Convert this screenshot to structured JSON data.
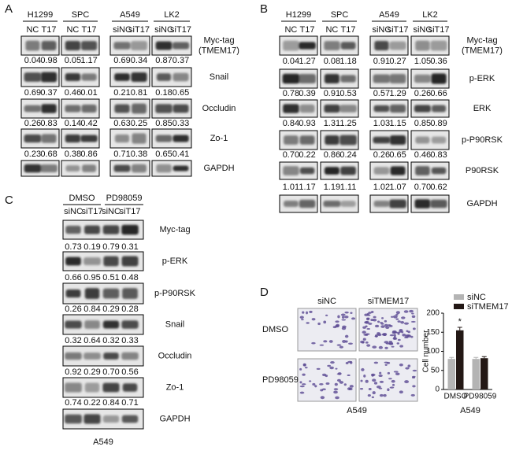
{
  "panel_a": {
    "label": "A",
    "groups": [
      "H1299",
      "SPC",
      "A549",
      "LK2"
    ],
    "lanes": [
      "NC",
      "T17",
      "NC",
      "T17",
      "siNC",
      "siT17",
      "siNC",
      "siT17"
    ],
    "rows": [
      {
        "name": [
          "Myc-tag",
          "(TMEM17)"
        ],
        "quant": [
          "0.04",
          "0.98",
          "0.05",
          "1.17",
          "0.69",
          "0.34",
          "0.87",
          "0.37"
        ]
      },
      {
        "name": [
          "Snail"
        ],
        "quant": [
          "0.69",
          "0.37",
          "0.46",
          "0.01",
          "0.21",
          "0.81",
          "0.18",
          "0.65"
        ]
      },
      {
        "name": [
          "Occludin"
        ],
        "quant": [
          "0.26",
          "0.83",
          "0.14",
          "0.42",
          "0.63",
          "0.25",
          "0.85",
          "0.33"
        ]
      },
      {
        "name": [
          "Zo-1"
        ],
        "quant": [
          "0.23",
          "0.68",
          "0.38",
          "0.86",
          "0.71",
          "0.38",
          "0.65",
          "0.41"
        ]
      },
      {
        "name": [
          "GAPDH"
        ]
      }
    ]
  },
  "panel_b": {
    "label": "B",
    "groups": [
      "H1299",
      "SPC",
      "A549",
      "LK2"
    ],
    "lanes": [
      "NC",
      "T17",
      "NC",
      "T17",
      "siNC",
      "siT17",
      "siNC",
      "siT17"
    ],
    "rows": [
      {
        "name": [
          "Myc-tag",
          "(TMEM17)"
        ],
        "quant": [
          "0.04",
          "1.27",
          "0.08",
          "1.18",
          "0.91",
          "0.27",
          "1.05",
          "0.36"
        ]
      },
      {
        "name": [
          "p-ERK"
        ],
        "quant": [
          "0.78",
          "0.39",
          "0.91",
          "0.53",
          "0.57",
          "1.29",
          "0.26",
          "0.66"
        ]
      },
      {
        "name": [
          "ERK"
        ],
        "quant": [
          "0.84",
          "0.93",
          "1.31",
          "1.25",
          "1.03",
          "1.15",
          "0.85",
          "0.89"
        ]
      },
      {
        "name": [
          "p-P90RSK"
        ],
        "quant": [
          "0.70",
          "0.22",
          "0.86",
          "0.24",
          "0.26",
          "0.65",
          "0.46",
          "0.83"
        ]
      },
      {
        "name": [
          "P90RSK"
        ],
        "quant": [
          "1.01",
          "1.17",
          "1.19",
          "1.11",
          "1.02",
          "1.07",
          "0.70",
          "0.62"
        ]
      },
      {
        "name": [
          "GAPDH"
        ]
      }
    ]
  },
  "panel_c": {
    "label": "C",
    "groups": [
      "DMSO",
      "PD98059"
    ],
    "lanes": [
      "siNC",
      "siT17",
      "siNC",
      "siT17"
    ],
    "rows": [
      {
        "name": [
          "Myc-tag"
        ],
        "quant": [
          "0.73",
          "0.19",
          "0.79",
          "0.31"
        ]
      },
      {
        "name": [
          "p-ERK"
        ],
        "quant": [
          "0.66",
          "0.95",
          "0.51",
          "0.48"
        ]
      },
      {
        "name": [
          "p-P90RSK"
        ],
        "quant": [
          "0.26",
          "0.84",
          "0.29",
          "0.28"
        ]
      },
      {
        "name": [
          "Snail"
        ],
        "quant": [
          "0.32",
          "0.64",
          "0.32",
          "0.33"
        ]
      },
      {
        "name": [
          "Occludin"
        ],
        "quant": [
          "0.92",
          "0.29",
          "0.70",
          "0.56"
        ]
      },
      {
        "name": [
          "Zo-1"
        ],
        "quant": [
          "0.74",
          "0.22",
          "0.84",
          "0.71"
        ]
      },
      {
        "name": [
          "GAPDH"
        ]
      }
    ],
    "footer": "A549"
  },
  "panel_d": {
    "label": "D",
    "columns": [
      "siNC",
      "siTMEM17"
    ],
    "rows": [
      "DMSO",
      "PD98059"
    ],
    "footer": "A549"
  },
  "chart_data": {
    "type": "bar",
    "categories": [
      "DMSO",
      "PD98059"
    ],
    "series": [
      {
        "name": "siNC",
        "color": "#b4b4b4",
        "values": [
          80,
          80
        ],
        "errors": [
          4,
          4
        ]
      },
      {
        "name": "siTMEM17",
        "color": "#231815",
        "values": [
          155,
          82
        ],
        "errors": [
          8,
          4
        ]
      }
    ],
    "ylim": [
      0,
      200
    ],
    "yticks": [
      0,
      50,
      100,
      150,
      200
    ],
    "ylabel": "Cell number",
    "xlabel": "A549",
    "annotation": "*"
  }
}
